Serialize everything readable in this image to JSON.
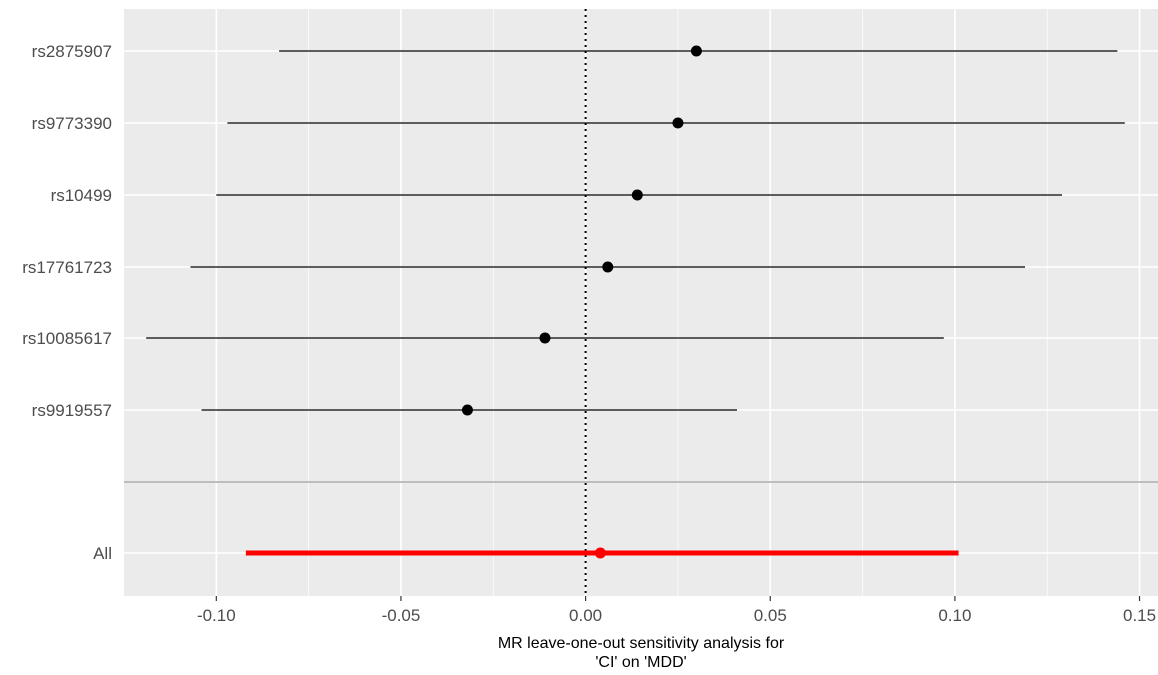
{
  "chart_data": {
    "type": "forest",
    "xlabel": [
      "MR leave-one-out sensitivity analysis for",
      "'CI' on 'MDD'"
    ],
    "xlim": [
      -0.125,
      0.155
    ],
    "x_ticks": [
      -0.1,
      -0.05,
      0.0,
      0.05,
      0.1,
      0.15
    ],
    "x_tick_labels": [
      "-0.10",
      "-0.05",
      "0.00",
      "0.05",
      "0.10",
      "0.15"
    ],
    "reference_line": 0,
    "grid": true,
    "snps": [
      {
        "label": "rs2875907",
        "estimate": 0.03,
        "lower": -0.083,
        "upper": 0.144
      },
      {
        "label": "rs9773390",
        "estimate": 0.025,
        "lower": -0.097,
        "upper": 0.146
      },
      {
        "label": "rs10499",
        "estimate": 0.014,
        "lower": -0.1,
        "upper": 0.129
      },
      {
        "label": "rs17761723",
        "estimate": 0.006,
        "lower": -0.107,
        "upper": 0.119
      },
      {
        "label": "rs10085617",
        "estimate": -0.011,
        "lower": -0.119,
        "upper": 0.097
      },
      {
        "label": "rs9919557",
        "estimate": -0.032,
        "lower": -0.104,
        "upper": 0.041
      }
    ],
    "overall": {
      "label": "All",
      "estimate": 0.004,
      "lower": -0.092,
      "upper": 0.101
    },
    "colors": {
      "panel_background": "#ebebeb",
      "grid": "#ffffff",
      "point": "#000000",
      "interval": "#000000",
      "overall": "#ff0000",
      "separator": "#bdbdbd"
    }
  }
}
